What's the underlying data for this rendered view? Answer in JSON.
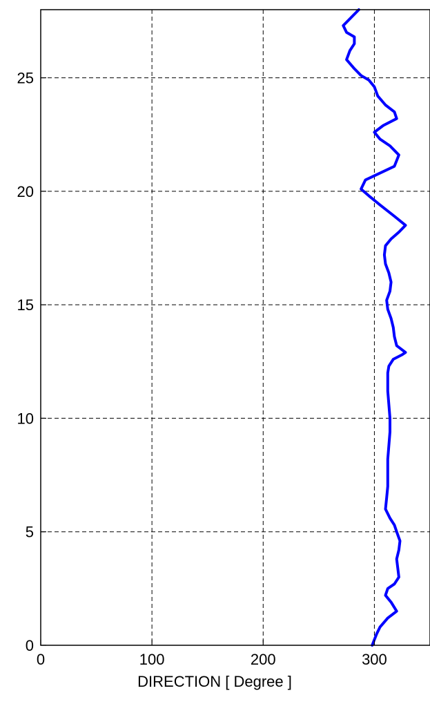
{
  "chart_data": {
    "type": "line",
    "title": "",
    "xlabel": "DIRECTION [ Degree ]",
    "ylabel": "",
    "xlim": [
      0,
      350
    ],
    "ylim": [
      0,
      28
    ],
    "xticks": [
      0,
      100,
      200,
      300
    ],
    "yticks": [
      0,
      5,
      10,
      15,
      20,
      25
    ],
    "grid": true,
    "line_color": "#0000ff",
    "series": [
      {
        "x": [
          298,
          302,
          305,
          312,
          320,
          315,
          310,
          312,
          318,
          322,
          321,
          320,
          322,
          323,
          320,
          318,
          314,
          310,
          311,
          312,
          312,
          312,
          313,
          314,
          314,
          313,
          312,
          312,
          312,
          313,
          317,
          325,
          328,
          320,
          318,
          317,
          315,
          312,
          311,
          314,
          315,
          313,
          310,
          309,
          310,
          315,
          322,
          328,
          318,
          305,
          295,
          288,
          292,
          305,
          318,
          322,
          314,
          305,
          300,
          308,
          320,
          318,
          310,
          303,
          300,
          295,
          288,
          282,
          275,
          278,
          282,
          282,
          275,
          272,
          278,
          286
        ],
        "y": [
          0.0,
          0.5,
          0.8,
          1.2,
          1.5,
          1.9,
          2.2,
          2.5,
          2.7,
          3.0,
          3.4,
          3.8,
          4.2,
          4.6,
          5.0,
          5.3,
          5.6,
          6.0,
          6.5,
          7.0,
          7.6,
          8.2,
          8.8,
          9.4,
          10.0,
          10.6,
          11.2,
          11.6,
          12.0,
          12.3,
          12.6,
          12.8,
          12.9,
          13.2,
          13.6,
          14.0,
          14.4,
          14.8,
          15.2,
          15.6,
          16.0,
          16.4,
          16.8,
          17.2,
          17.6,
          17.9,
          18.2,
          18.5,
          18.9,
          19.4,
          19.8,
          20.1,
          20.5,
          20.8,
          21.1,
          21.6,
          22.0,
          22.3,
          22.6,
          22.9,
          23.2,
          23.5,
          23.8,
          24.2,
          24.6,
          24.9,
          25.1,
          25.4,
          25.8,
          26.2,
          26.5,
          26.8,
          27.0,
          27.3,
          27.6,
          28.0
        ]
      }
    ]
  }
}
